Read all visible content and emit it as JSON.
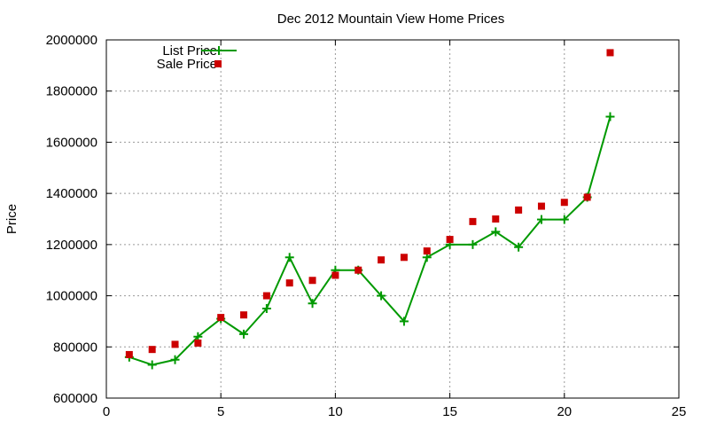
{
  "chart_data": {
    "type": "line",
    "title": "Dec 2012 Mountain View Home Prices",
    "xlabel": "",
    "ylabel": "Price",
    "xlim": [
      0,
      25
    ],
    "ylim": [
      600000,
      2000000
    ],
    "x_ticks": [
      0,
      5,
      10,
      15,
      20,
      25
    ],
    "y_ticks": [
      600000,
      800000,
      1000000,
      1200000,
      1400000,
      1600000,
      1800000,
      2000000
    ],
    "grid": true,
    "legend_position": "top-left",
    "series": [
      {
        "name": "List Price",
        "style": "line-with-plus-markers",
        "color": "#009900",
        "points": [
          [
            1,
            760000
          ],
          [
            2,
            730000
          ],
          [
            3,
            750000
          ],
          [
            4,
            840000
          ],
          [
            5,
            910000
          ],
          [
            6,
            850000
          ],
          [
            7,
            950000
          ],
          [
            8,
            1150000
          ],
          [
            9,
            970000
          ],
          [
            10,
            1100000
          ],
          [
            11,
            1100000
          ],
          [
            12,
            1000000
          ],
          [
            13,
            900000
          ],
          [
            14,
            1150000
          ],
          [
            15,
            1200000
          ],
          [
            16,
            1200000
          ],
          [
            17,
            1250000
          ],
          [
            18,
            1190000
          ],
          [
            19,
            1298000
          ],
          [
            20,
            1298000
          ],
          [
            21,
            1385000
          ],
          [
            22,
            1700000
          ]
        ]
      },
      {
        "name": "Sale Price",
        "style": "square-markers",
        "color": "#cc0000",
        "points": [
          [
            1,
            770000
          ],
          [
            2,
            790000
          ],
          [
            3,
            810000
          ],
          [
            4,
            815000
          ],
          [
            5,
            915000
          ],
          [
            6,
            925000
          ],
          [
            7,
            1000000
          ],
          [
            8,
            1050000
          ],
          [
            9,
            1060000
          ],
          [
            10,
            1080000
          ],
          [
            11,
            1100000
          ],
          [
            12,
            1140000
          ],
          [
            13,
            1150000
          ],
          [
            14,
            1175000
          ],
          [
            15,
            1220000
          ],
          [
            16,
            1290000
          ],
          [
            17,
            1300000
          ],
          [
            18,
            1335000
          ],
          [
            19,
            1350000
          ],
          [
            20,
            1365000
          ],
          [
            21,
            1385000
          ],
          [
            22,
            1950000
          ]
        ]
      }
    ]
  }
}
